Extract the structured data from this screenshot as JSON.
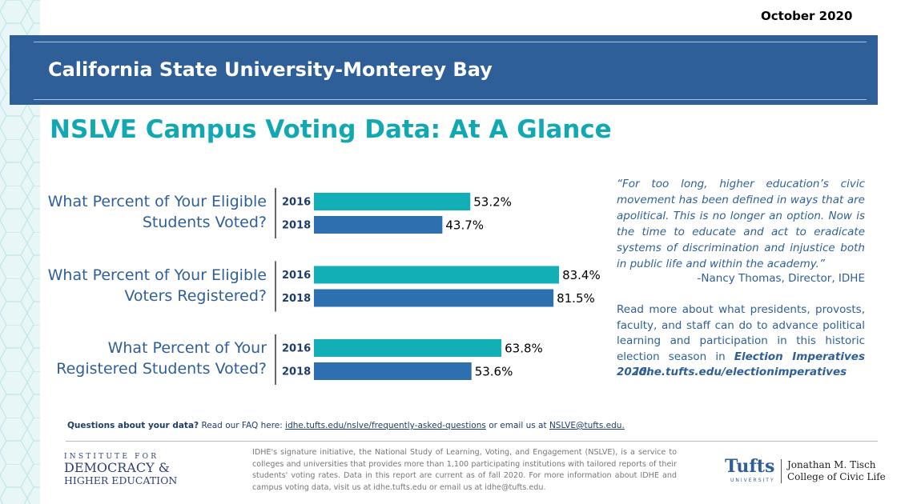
{
  "header": {
    "date": "October 2020",
    "institution": "California State University-Monterey Bay",
    "title": "NSLVE Campus Voting Data: At A Glance"
  },
  "chart_data": {
    "type": "bar",
    "orientation": "horizontal",
    "categories": [
      "What Percent of Your Eligible Students Voted?",
      "What Percent of Your Eligible Voters Registered?",
      "What Percent of Your Registered Students Voted?"
    ],
    "series": [
      {
        "name": "2016",
        "color": "#12b0b6",
        "values": [
          53.2,
          83.4,
          63.8
        ],
        "value_labels": [
          "53.2%",
          "83.4%",
          "63.8%"
        ]
      },
      {
        "name": "2018",
        "color": "#2e6fb0",
        "values": [
          43.7,
          81.5,
          53.6
        ],
        "value_labels": [
          "43.7%",
          "81.5%",
          "53.6%"
        ]
      }
    ]
  },
  "quote": {
    "text": "“For too long, higher education’s civic movement has been defined in ways that are apolitical. This is no longer an option. Now is the time to educate and act to eradicate systems of discrimination and injustice both in public life and within the academy.”",
    "attribution": "-Nancy Thomas, Director, IDHE"
  },
  "read_more": {
    "text": "Read more about what presidents, provosts, faculty, and staff can do to advance political learning and participation in this historic election season in",
    "emphasis": "Election Imperatives 2020:",
    "link": "idhe.tufts.edu/electionimperatives"
  },
  "footer": {
    "question_label": "Questions about your data?",
    "question_text": "Read our FAQ here:",
    "faq_link": "idhe.tufts.edu/nslve/frequently-asked-questions",
    "email_text": "or email us at",
    "email": "NSLVE@tufts.edu.",
    "about": "IDHE's signature initiative, the National Study of Learning, Voting, and Engagement (NSLVE), is a service to colleges and universities that provides more than 1,100 participating institutions with tailored reports of their students' voting rates. Data in this report are current as of fall 2020. For more information about IDHE and campus voting data, visit us at idhe.tufts.edu  or email us at idhe@tufts.edu.",
    "logo_left": [
      "INSTITUTE FOR",
      "DEMOCRACY &",
      "HIGHER EDUCATION"
    ],
    "logo_right": {
      "tufts": "Tufts",
      "university": "UNIVERSITY",
      "college": [
        "Jonathan M. Tisch",
        "College of Civic Life"
      ]
    }
  }
}
